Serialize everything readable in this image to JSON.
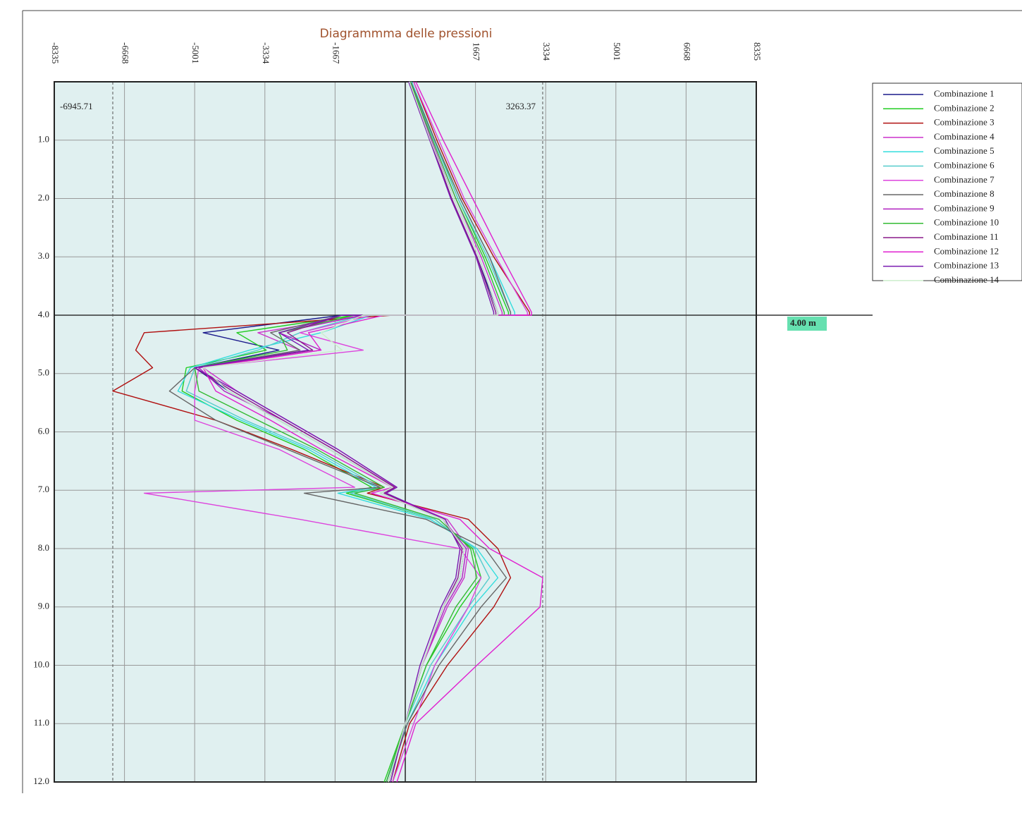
{
  "chart_data": {
    "type": "line",
    "title": "Diagrammma delle pressioni",
    "orientation": "vertical-depth",
    "xlim": [
      -8335,
      8335
    ],
    "xticks": [
      -8335,
      -6668,
      -5001,
      -3334,
      -1667,
      1667,
      3334,
      5001,
      6668,
      8335
    ],
    "ylim": [
      0,
      12
    ],
    "y_inverted": true,
    "yticks": [
      {
        "value": 1,
        "label": "1.0"
      },
      {
        "value": 2,
        "label": "2.0"
      },
      {
        "value": 3,
        "label": "3.0"
      },
      {
        "value": 4,
        "label": "4.0"
      },
      {
        "value": 5,
        "label": "5.0"
      },
      {
        "value": 6,
        "label": "6.0"
      },
      {
        "value": 7,
        "label": "7.0"
      },
      {
        "value": 8,
        "label": "8.0"
      },
      {
        "value": 9,
        "label": "9.0"
      },
      {
        "value": 10,
        "label": "10.0"
      },
      {
        "value": 11,
        "label": "11.0"
      },
      {
        "value": 12,
        "label": "12.0"
      }
    ],
    "grid": true,
    "annotations": [
      {
        "text": "-6945.71",
        "value": -6945.71
      },
      {
        "text": "3263.37",
        "value": 3263.37
      }
    ],
    "marker": {
      "label": "4.00 m",
      "depth": 4
    },
    "y": [
      0,
      1,
      2,
      3,
      3.95,
      4,
      4,
      4.3,
      4.6,
      4.9,
      5.3,
      5.8,
      6.3,
      6.95,
      7.05,
      7.5,
      8.0,
      8.5,
      9.0,
      10,
      11,
      12
    ],
    "series": [
      {
        "name": "Combinazione 1",
        "color": "#1a1a8c",
        "values": [
          100,
          600,
          1100,
          1700,
          2200,
          2200,
          -1500,
          -4800,
          -3000,
          -5000,
          -4200,
          -3000,
          -1800,
          -300,
          -600,
          900,
          1400,
          1300,
          900,
          400,
          0,
          -400
        ]
      },
      {
        "name": "Combinazione 2",
        "color": "#22cc22",
        "values": [
          150,
          700,
          1250,
          1900,
          2450,
          2450,
          -1200,
          -4000,
          -3300,
          -5200,
          -5300,
          -4000,
          -2400,
          -800,
          -1400,
          700,
          1600,
          1800,
          1300,
          500,
          0,
          -500
        ]
      },
      {
        "name": "Combinazione 3",
        "color": "#b01010",
        "values": [
          200,
          750,
          1350,
          2100,
          2950,
          2950,
          -300,
          -6200,
          -6400,
          -6000,
          -6945.71,
          -4500,
          -2700,
          -500,
          -900,
          1500,
          2200,
          2500,
          2100,
          1000,
          100,
          -300
        ]
      },
      {
        "name": "Combinazione 4",
        "color": "#cc33cc",
        "values": [
          100,
          650,
          1200,
          1800,
          2300,
          2300,
          -1000,
          -3500,
          -2500,
          -4800,
          -4000,
          -2800,
          -1600,
          -200,
          -500,
          1000,
          1500,
          1400,
          1000,
          400,
          0,
          -400
        ]
      },
      {
        "name": "Combinazione 5",
        "color": "#33dddd",
        "values": [
          150,
          700,
          1300,
          2000,
          2600,
          2600,
          -800,
          -2000,
          -3700,
          -5100,
          -5400,
          -3900,
          -2300,
          -700,
          -1600,
          600,
          1700,
          2200,
          1600,
          700,
          50,
          -450
        ]
      },
      {
        "name": "Combinazione 6",
        "color": "#55cccc",
        "values": [
          120,
          680,
          1250,
          1950,
          2500,
          2500,
          -1000,
          -2500,
          -3500,
          -5000,
          -5200,
          -3800,
          -2200,
          -600,
          -1300,
          700,
          1650,
          2000,
          1500,
          600,
          0,
          -450
        ]
      },
      {
        "name": "Combinazione 7",
        "color": "#dd44dd",
        "values": [
          200,
          800,
          1400,
          2150,
          2900,
          2900,
          -800,
          -2500,
          -1000,
          -4900,
          -5000,
          -5000,
          -3000,
          -1200,
          -6200,
          -2500,
          1300,
          1800,
          1500,
          700,
          200,
          -300
        ]
      },
      {
        "name": "Combinazione 8",
        "color": "#666666",
        "values": [
          130,
          700,
          1300,
          2000,
          2500,
          2500,
          -1500,
          -3200,
          -2500,
          -5000,
          -5600,
          -4500,
          -2800,
          -600,
          -2400,
          500,
          1900,
          2400,
          1800,
          800,
          50,
          -400
        ]
      },
      {
        "name": "Combinazione 9",
        "color": "#b020c0",
        "values": [
          100,
          620,
          1150,
          1750,
          2200,
          2200,
          -1000,
          -3000,
          -2000,
          -4900,
          -4300,
          -2900,
          -1700,
          -250,
          -500,
          900,
          1450,
          1350,
          950,
          400,
          0,
          -450
        ]
      },
      {
        "name": "Combinazione 10",
        "color": "#33bb33",
        "values": [
          110,
          650,
          1200,
          1850,
          2350,
          2350,
          -1200,
          -3000,
          -2800,
          -5000,
          -4900,
          -3500,
          -2100,
          -500,
          -1200,
          800,
          1550,
          1700,
          1200,
          500,
          0,
          -450
        ]
      },
      {
        "name": "Combinazione 11",
        "color": "#8a1a8a",
        "values": [
          90,
          600,
          1100,
          1700,
          2150,
          2150,
          -1500,
          -2800,
          -2200,
          -5000,
          -4100,
          -2900,
          -1700,
          -250,
          -500,
          900,
          1350,
          1250,
          900,
          400,
          0,
          -350
        ]
      },
      {
        "name": "Combinazione 12",
        "color": "#e020d0",
        "values": [
          250,
          900,
          1600,
          2300,
          3000,
          3000,
          -500,
          -2300,
          -2000,
          -4800,
          -4500,
          -3200,
          -2000,
          -300,
          -800,
          1300,
          2000,
          3263.37,
          3200,
          1700,
          250,
          -200
        ]
      },
      {
        "name": "Combinazione 13",
        "color": "#7a1ab0",
        "values": [
          80,
          580,
          1080,
          1680,
          2100,
          2100,
          -1500,
          -3000,
          -2300,
          -5000,
          -4000,
          -2800,
          -1600,
          -200,
          -450,
          950,
          1300,
          1200,
          850,
          350,
          0,
          -350
        ]
      },
      {
        "name": "Combinazione 14",
        "color": "#cceecc",
        "values": [
          100,
          600,
          1150,
          1750,
          2200,
          2200,
          -1000,
          -2000,
          -1500,
          -4800,
          -4200,
          -3000,
          -1800,
          -300,
          -600,
          900,
          1400,
          1300,
          900,
          400,
          0,
          -400
        ]
      }
    ]
  }
}
